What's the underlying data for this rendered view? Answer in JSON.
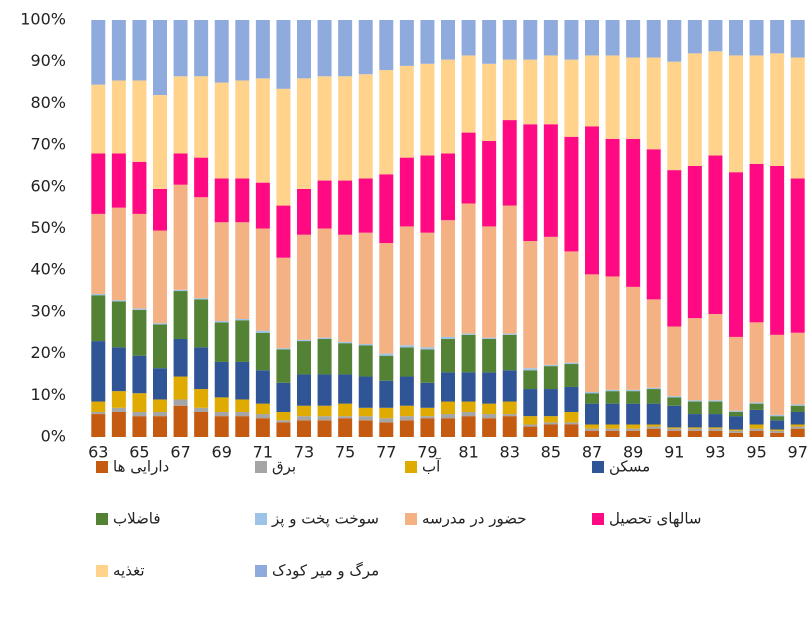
{
  "chart_data": {
    "type": "stacked_bar_100",
    "categories": [
      "63",
      null,
      "65",
      null,
      "67",
      null,
      "69",
      null,
      "71",
      null,
      "73",
      null,
      "75",
      null,
      "77",
      null,
      "79",
      null,
      "81",
      null,
      "83",
      null,
      "85",
      null,
      "87",
      null,
      "89",
      null,
      "91",
      null,
      "93",
      null,
      "95",
      null,
      "97"
    ],
    "ylim": [
      0,
      100
    ],
    "yticks": [
      {
        "value": 0,
        "label": "0%"
      },
      {
        "value": 10,
        "label": "10%"
      },
      {
        "value": 20,
        "label": "20%"
      },
      {
        "value": 30,
        "label": "30%"
      },
      {
        "value": 40,
        "label": "40%"
      },
      {
        "value": 50,
        "label": "50%"
      },
      {
        "value": 60,
        "label": "60%"
      },
      {
        "value": 70,
        "label": "70%"
      },
      {
        "value": 80,
        "label": "80%"
      },
      {
        "value": 90,
        "label": "90%"
      },
      {
        "value": 100,
        "label": "100%"
      }
    ],
    "grid": false,
    "legend": "bottom",
    "series": [
      {
        "name": "دارایی ها",
        "color": "#c55a11",
        "values": [
          5.5,
          6,
          5,
          5,
          7.5,
          6,
          5,
          5,
          4.5,
          3.5,
          4,
          4,
          4.5,
          4,
          3.5,
          4,
          4.5,
          4.5,
          5,
          4.5,
          5,
          2.5,
          3,
          3,
          1.5,
          1.5,
          1.5,
          2,
          1.5,
          1.5,
          1.5,
          1,
          1.5,
          1,
          2
        ]
      },
      {
        "name": "برق",
        "color": "#a5a5a5",
        "values": [
          0.5,
          1,
          1,
          1,
          1.5,
          1,
          1,
          1,
          1,
          0.5,
          1,
          1,
          0.5,
          1,
          1,
          1,
          0.5,
          1,
          1,
          1,
          0.5,
          0.5,
          0.5,
          0.5,
          0.5,
          0.5,
          0.5,
          0.5,
          0.5,
          0.5,
          0.5,
          0.5,
          0.5,
          0.5,
          0.5
        ]
      },
      {
        "name": "آب",
        "color": "#e0ab00",
        "values": [
          2.5,
          4,
          4.5,
          3,
          5.5,
          4.5,
          3.5,
          3,
          2.5,
          2,
          2.5,
          2.5,
          3,
          2,
          2.5,
          2.5,
          2,
          3,
          2.5,
          2.5,
          3,
          2,
          1.5,
          2.5,
          1,
          1,
          1,
          0.5,
          0.3,
          0.3,
          0.3,
          0.3,
          1,
          0.3,
          0.5
        ]
      },
      {
        "name": "مسکن",
        "color": "#2f5597",
        "values": [
          14.5,
          10.5,
          9,
          7.5,
          9,
          10,
          8.5,
          9,
          8,
          7,
          7.5,
          7.5,
          7,
          7.5,
          6.5,
          7,
          6,
          7,
          7,
          7.5,
          7.5,
          6.5,
          6.5,
          6,
          5,
          5,
          5,
          5,
          5.2,
          3.2,
          3.2,
          3.2,
          3.5,
          2.2,
          3
        ]
      },
      {
        "name": "فاضلاب",
        "color": "#548235",
        "values": [
          11,
          11,
          11,
          10.5,
          11.5,
          11.5,
          9.5,
          10,
          9,
          8,
          8,
          8.5,
          7.5,
          7.5,
          6,
          7,
          8,
          8,
          9,
          8,
          8.5,
          4.5,
          5.5,
          5.5,
          2.5,
          3,
          3,
          3.5,
          2,
          3,
          3,
          1,
          1.5,
          1,
          1.5
        ]
      },
      {
        "name": "سوخت پخت و پز",
        "color": "#9dc3e6",
        "values": [
          0.3,
          0.3,
          0.3,
          0.3,
          0.3,
          0.3,
          0.3,
          0.3,
          0.5,
          0.3,
          0.3,
          0.3,
          0.3,
          0.3,
          0.5,
          0.5,
          0.5,
          0.5,
          0.3,
          0.3,
          0.3,
          0.5,
          0.3,
          0.3,
          0.3,
          0.3,
          0.3,
          0.3,
          0.3,
          0.3,
          0.3,
          0.3,
          0.3,
          0.3,
          0.3
        ]
      },
      {
        "name": "حضور در مدرسه",
        "color": "#f4b183",
        "values": [
          19.2,
          22.2,
          22.7,
          22.2,
          25.2,
          24.2,
          23.7,
          23.2,
          24.5,
          21.7,
          25.2,
          26.2,
          25.7,
          26.7,
          26.5,
          28.5,
          27.5,
          28,
          31.2,
          26.7,
          30.7,
          30.5,
          30.7,
          26.7,
          28.2,
          27.2,
          24.7,
          21.2,
          16.7,
          19.7,
          20.7,
          17.7,
          19.2,
          19.2,
          17.2
        ]
      },
      {
        "name": "سالهای تحصیل",
        "color": "#ff0a83",
        "values": [
          14.5,
          13,
          12.5,
          10,
          7.5,
          9.5,
          10.5,
          10.5,
          11,
          12.5,
          11,
          11.5,
          13,
          13,
          16.5,
          16.5,
          18.5,
          16,
          17,
          20.5,
          20.5,
          28,
          27,
          27.5,
          35.5,
          33,
          35.5,
          36,
          37.5,
          36.5,
          38,
          39.5,
          38,
          40.5,
          37
        ]
      },
      {
        "name": "تغذیه",
        "color": "#ffd38b",
        "values": [
          16.5,
          17.5,
          19.5,
          22.5,
          18.5,
          19.5,
          23,
          23.5,
          25,
          28,
          26.5,
          25,
          25,
          25,
          25,
          22,
          22,
          22.5,
          18.5,
          18.5,
          14.5,
          15.5,
          16.5,
          18.5,
          17,
          20,
          19.5,
          22,
          26,
          27,
          25,
          28,
          26,
          27,
          29
        ]
      },
      {
        "name": "مرگ و میر کودک",
        "color": "#8faadc",
        "values": [
          15.5,
          14.5,
          14.5,
          18,
          13.5,
          13.5,
          15,
          14.5,
          14,
          16.5,
          14,
          13.5,
          13.5,
          13,
          12,
          11,
          10.5,
          9.5,
          8.5,
          10.5,
          9.5,
          9.5,
          8.5,
          9.5,
          8.5,
          8.5,
          9,
          9,
          10,
          8,
          7.5,
          8.5,
          8.5,
          8,
          9
        ]
      }
    ]
  }
}
